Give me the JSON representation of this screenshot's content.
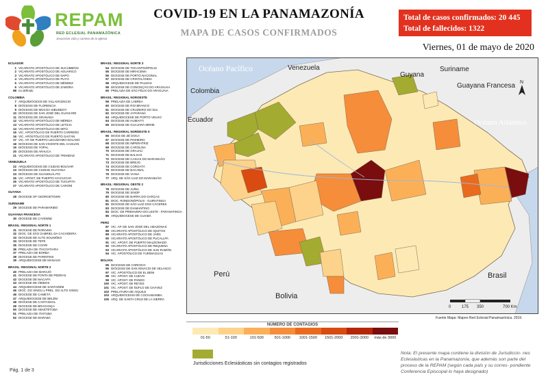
{
  "header": {
    "logo_text": "REPAM",
    "logo_subtext": "RED ECLESIAL PANAMAZÓNICA",
    "logo_tagline": "Jesucristo vida y camino de la Iglesia",
    "title": "COVID-19 EN LA PANAMAZONÍA",
    "subtitle": "MAPA DE CASOS CONFIRMADOS",
    "total_cases": "Total de casos confirmados: 20 445",
    "total_deaths": "Total de fallecidos: 1322",
    "date": "Viernes, 01 de mayo de 2020"
  },
  "legend_col1": [
    {
      "group": "ECUADOR",
      "items": [
        {
          "n": "1",
          "t": "VICARIATO APOSTÓLICO DE SUCUMBÍOS"
        },
        {
          "n": "2",
          "t": "VICARIATO APOSTÓLICO DE AGUARICO"
        },
        {
          "n": "3",
          "t": "VICARIATO APOSTÓLICO DE NAPO"
        },
        {
          "n": "4",
          "t": "VICARIATO APOSTÓLICO DE PUYO"
        },
        {
          "n": "5",
          "t": "VICARIATO APOSTÓLICO DE MÉNDEZ"
        },
        {
          "n": "6",
          "t": "VICARIATO APOSTÓLICO DE ZAMORA"
        },
        {
          "n": "88",
          "t": "no definido"
        }
      ]
    },
    {
      "group": "COLOMBIA",
      "items": [
        {
          "n": "7",
          "t": "ARQUIDIÓCESIS DE VILLAVICENCIO"
        },
        {
          "n": "8",
          "t": "DIÓCESIS DE FLORENCIA"
        },
        {
          "n": "9",
          "t": "DIÓCESIS DE MOCOA-SIBUNDOY"
        },
        {
          "n": "10",
          "t": "DIÓCESIS DE SAN JOSÉ DEL GUAVIARE"
        },
        {
          "n": "11",
          "t": "DIÓCESIS DE GRANADA"
        },
        {
          "n": "12",
          "t": "VICARIATO APOSTÓLICO DE MÉRIDA"
        },
        {
          "n": "13",
          "t": "VICARIATO APOSTÓLICO DE LETICIA"
        },
        {
          "n": "14",
          "t": "VICARIATO APOSTÓLICO DE MITÚ"
        },
        {
          "n": "15",
          "t": "VIC. APOSTÓLICO DE PUERTO CARREÑO"
        },
        {
          "n": "16",
          "t": "VIC. APOSTÓLICO DE PUERTO GAITÁN"
        },
        {
          "n": "17",
          "t": "VIC. AP. DE PUERTO LEGUÍZAMO-SOLANO"
        },
        {
          "n": "18",
          "t": "DIÓCESIS DE SAN VICENTE DEL CAGUÁN"
        },
        {
          "n": "19",
          "t": "DIÓCESIS DE YOPAL"
        },
        {
          "n": "20",
          "t": "DIÓCESIS DE ARAUCA"
        },
        {
          "n": "21",
          "t": "VICARIATO APOSTÓLICO DE TRINIDAD"
        }
      ]
    },
    {
      "group": "VENEZUELA",
      "items": [
        {
          "n": "22",
          "t": "ARQUIDIÓCESIS DE CIUDAD BOLÍVAR"
        },
        {
          "n": "23",
          "t": "DIÓCESIS DE CIUDAD GUAYANA"
        },
        {
          "n": "24",
          "t": "DIÓCESIS DE GUASDUALITO"
        },
        {
          "n": "25",
          "t": "VIC. APOST. DE PUERTO AYACUCHO"
        },
        {
          "n": "26",
          "t": "VICARIATO APOSTÓLICO DE TUCUPITA"
        },
        {
          "n": "27",
          "t": "VICARIATO APOSTÓLICO DE CARONÍ"
        }
      ]
    },
    {
      "group": "GUYANA",
      "items": [
        {
          "n": "28",
          "t": "DIOCESE OF GEORGETOWN"
        }
      ]
    },
    {
      "group": "SURINAME",
      "items": [
        {
          "n": "29",
          "t": "DIOCESE DE PARAMARIBO"
        }
      ]
    },
    {
      "group": "GUAYANA FRANCESA",
      "items": [
        {
          "n": "30",
          "t": "DIOCESE DE CAYENNE"
        }
      ]
    },
    {
      "group": "BRASIL: REGIONAL NORTE 1",
      "items": [
        {
          "n": "31",
          "t": "DIOCESE DE RORAIMA"
        },
        {
          "n": "32",
          "t": "DIOC. DE SÃO GABRIEL DA CACHOEIRA"
        },
        {
          "n": "33",
          "t": "DIOCESE DE ALTO SOLIMÕES"
        },
        {
          "n": "34",
          "t": "DIOCESE DE TEFÉ"
        },
        {
          "n": "35",
          "t": "DIOCESE DE COARI"
        },
        {
          "n": "36",
          "t": "PRELAZIA DE ITACOATIARA"
        },
        {
          "n": "37",
          "t": "PRELAZIA DE BORBA"
        },
        {
          "n": "38",
          "t": "DIOCESE DE PARINTINS"
        },
        {
          "n": "39",
          "t": "ARQUIDIOCESE DE MANAUS"
        }
      ]
    },
    {
      "group": "BRASIL: REGIONAL NORTE 2",
      "items": [
        {
          "n": "40",
          "t": "PRELAZIA DE MARAJÓ"
        },
        {
          "n": "41",
          "t": "DIOCESE DE PONTA DE PEDRAS"
        },
        {
          "n": "42",
          "t": "DIOCESE DE MACAPÁ"
        },
        {
          "n": "43",
          "t": "DIOCESE DE ÓBIDOS"
        },
        {
          "n": "44",
          "t": "ARQUIDIOCESE DE SANTARÉM"
        },
        {
          "n": "45",
          "t": "DIOC. DO XINGU y PREL. DO ALTO XINGU"
        },
        {
          "n": "46",
          "t": "DIOCESE DE CAMETÁ"
        },
        {
          "n": "47",
          "t": "ARQUIDIOCESE DE BELÉM"
        },
        {
          "n": "48",
          "t": "DIOCESE DE CASTANHAL"
        },
        {
          "n": "49",
          "t": "DIOCESE DE BRAGANÇA"
        },
        {
          "n": "50",
          "t": "DIOCESE DE ABAETETUBA"
        },
        {
          "n": "51",
          "t": "PRELAZIA DE ITAITUBA"
        },
        {
          "n": "52",
          "t": "DIOCESE DE MARABÁ"
        }
      ]
    }
  ],
  "legend_col2": [
    {
      "group": "BRASIL: REGIONAL NORTE 3",
      "items": [
        {
          "n": "54",
          "t": "DIOCESE DE TOCANTINÓPOLIS"
        },
        {
          "n": "55",
          "t": "DIOCESE DE MIRACEMA"
        },
        {
          "n": "56",
          "t": "DIOCESE DE PORTO NACIONAL"
        },
        {
          "n": "57",
          "t": "DIOCESE DE CRISTALÂNDIA"
        },
        {
          "n": "58",
          "t": "ARQUIDIOCESE DE PALMAS"
        },
        {
          "n": "59",
          "t": "DIOCESE DE CONCEIÇÃO DO ARAGUAIA"
        },
        {
          "n": "60",
          "t": "PRELAZIA DE SÃO FÉLIX DO ARAGUAIA"
        }
      ]
    },
    {
      "group": "BRASIL: REGIONAL NOROESTE",
      "items": [
        {
          "n": "59",
          "t": "PRELAZIA DE LÁBREA"
        },
        {
          "n": "60",
          "t": "DIOCESE DE RIO BRANCO"
        },
        {
          "n": "61",
          "t": "DIOCESE DE CRUZEIRO DO SUL"
        },
        {
          "n": "62",
          "t": "DIOCESE DE JI-PARANÁ"
        },
        {
          "n": "63",
          "t": "ARQUIDIOCESE DE PORTO VELHO"
        },
        {
          "n": "64",
          "t": "DIOCESE DE HUMAITÁ"
        },
        {
          "n": "65",
          "t": "DIOCESE DE GUAJARÁ-MIRIM"
        }
      ]
    },
    {
      "group": "BRASIL: REGIONAL NORDESTE 5",
      "items": [
        {
          "n": "66",
          "t": "DIOCE DE ZÉ DOCA"
        },
        {
          "n": "67",
          "t": "DIOCESE DE PINHEIRO"
        },
        {
          "n": "68",
          "t": "DIOCESE DE IMPERATRIZ"
        },
        {
          "n": "69",
          "t": "DIOCESE DE CAROLINA"
        },
        {
          "n": "70",
          "t": "DIOCESE DE GRAJAÚ"
        },
        {
          "n": "71",
          "t": "DIOCESE DE BALSAS"
        },
        {
          "n": "72",
          "t": "DIOCESE DE CAXIAS DO MARANHÃO"
        },
        {
          "n": "73",
          "t": "DIOCESE DE BREJO"
        },
        {
          "n": "74",
          "t": "DIOCESE DE COROATÁ"
        },
        {
          "n": "75",
          "t": "DIOCESE DE BACABAL"
        },
        {
          "n": "76",
          "t": "DIOCESE DE VIANA"
        },
        {
          "n": "77",
          "t": "ARQ. DE SÃO LUIZ DO MARANHÃO"
        }
      ]
    },
    {
      "group": "BRASIL: REGIONAL OESTE 2",
      "items": [
        {
          "n": "78",
          "t": "DIOCESE DE JUÍNA"
        },
        {
          "n": "79",
          "t": "DIOCESE DE SINOP"
        },
        {
          "n": "80",
          "t": "DIOCESE DE BARRA DO GARÇAS"
        },
        {
          "n": "81",
          "t": "DIOC. RONDONÓPOLIS - GUIRATINGA"
        },
        {
          "n": "82",
          "t": "DIOCESE DE SÃO LUIZ DOS CÁCERES"
        },
        {
          "n": "83",
          "t": "DIOCESE DE DIAMANTINO"
        },
        {
          "n": "84",
          "t": "DIOC. DE PRIMAVERA DO LESTE - PARANATINGA"
        },
        {
          "n": "85",
          "t": "ARQUIDIOCESE DE CUIABÁ"
        }
      ]
    },
    {
      "group": "PERÚ",
      "items": [
        {
          "n": "87",
          "t": "VIC. AP. DE SAN JOSÉ DEL AMAZONAS"
        },
        {
          "n": "88",
          "t": "VICARIATO APOSTÓLICO DE IQUITOS"
        },
        {
          "n": "89",
          "t": "VICARIATO APOSTÓLICO DE JAÉN"
        },
        {
          "n": "90",
          "t": "VICARIATO APOSTÓLICO DE PUCALLPA"
        },
        {
          "n": "91",
          "t": "VIC. APOST. DE PUERTO MALDONADO"
        },
        {
          "n": "92",
          "t": "VICARIATO APOSTÓLICO DE REQUENA"
        },
        {
          "n": "93",
          "t": "VICARIATO APOSTÓLICO DE SAN RAMÓN"
        },
        {
          "n": "94",
          "t": "VIC. APOSTÓLICO DE YURIMAGUAS"
        }
      ]
    },
    {
      "group": "BOLIVIA",
      "items": [
        {
          "n": "95",
          "t": "DIOCESIS DE COROICO"
        },
        {
          "n": "96",
          "t": "DIÓCESIS DE SAN IGNACIO DE VELASCO"
        },
        {
          "n": "97",
          "t": "VIC. APOSTÓLICO DE EL BENI"
        },
        {
          "n": "98",
          "t": "VIC. APOST. DE CUEVO"
        },
        {
          "n": "99",
          "t": "VIC. APOST. DE PANDO"
        },
        {
          "n": "100",
          "t": "VIC. APOST. DE REYES"
        },
        {
          "n": "101",
          "t": "VIC. APOST. DE ÑUFLO DE CHÁVEZ"
        },
        {
          "n": "102",
          "t": "PRELATURA DE AIQUILE"
        },
        {
          "n": "103",
          "t": "ARQUIDIÓCESIS DE COCHABAMBA"
        },
        {
          "n": "105",
          "t": "ARQ. DE SANTA CRUZ DE LA SIERRA"
        }
      ]
    }
  ],
  "map": {
    "labels": {
      "ocean_pacific": "Océano Pacífico",
      "ocean_atlantic": "Océano Atlántico",
      "venezuela": "Venezuela",
      "colombia": "Colombia",
      "ecuador": "Ecuador",
      "peru": "Perú",
      "bolivia": "Bolivia",
      "brasil": "Brasil",
      "guyana": "Guyana",
      "suriname": "Suriname",
      "guayana_francesa": "Guayana Francesa"
    },
    "scale_labels": [
      "0",
      "175",
      "350",
      "700 Km"
    ],
    "north": "N",
    "colors": {
      "water": "#c8d8ec",
      "land_outside": "#ededed",
      "no_contagion": "#a4ab31",
      "border": "#7a6a55"
    }
  },
  "contagion_legend": {
    "title": "NÚMERO DE CONTAGIOS",
    "categories": [
      {
        "label": "01-50",
        "color": "#fde9b4"
      },
      {
        "label": "51-100",
        "color": "#fdd28a"
      },
      {
        "label": "101-500",
        "color": "#fbb058"
      },
      {
        "label": "501-1000",
        "color": "#f68d3a"
      },
      {
        "label": "1001-1500",
        "color": "#ea6b1e"
      },
      {
        "label": "1501-2000",
        "color": "#d94b10"
      },
      {
        "label": "2001-3000",
        "color": "#b52608"
      },
      {
        "label": "más de 3000",
        "color": "#7a0d0d"
      }
    ],
    "no_contagion_label": "Jurisdicciones Eclesiásticas sin contagios registrados"
  },
  "source": "Fuente Mapa: Mapeo Red Eclesial Panamazónica. 2019.",
  "note": "Nota: El presente mapa contiene la división de Jurisdiccio- nes Eclesiásticas en la Panamazonía, que además son parte del proceso de la REPAM (según cada país y su corres- pondiente Conferencia Episcopal lo haya designado)",
  "page": "Pág. 1 de 3"
}
